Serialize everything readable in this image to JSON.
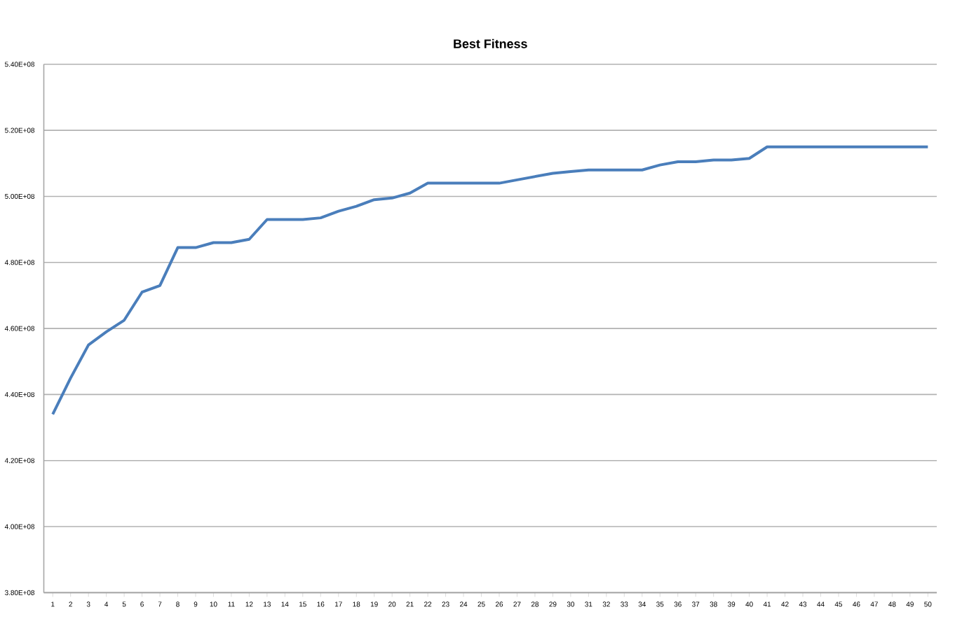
{
  "chart_data": {
    "type": "line",
    "title": "Best Fitness",
    "categories": [
      "1",
      "2",
      "3",
      "4",
      "5",
      "6",
      "7",
      "8",
      "9",
      "10",
      "11",
      "12",
      "13",
      "14",
      "15",
      "16",
      "17",
      "18",
      "19",
      "20",
      "21",
      "22",
      "23",
      "24",
      "25",
      "26",
      "27",
      "28",
      "29",
      "30",
      "31",
      "32",
      "33",
      "34",
      "35",
      "36",
      "37",
      "38",
      "39",
      "40",
      "41",
      "42",
      "43",
      "44",
      "45",
      "46",
      "47",
      "48",
      "49",
      "50"
    ],
    "series": [
      {
        "color": "#4a7ebb",
        "values": [
          434000000,
          445000000,
          455000000,
          459000000,
          462500000,
          471000000,
          473000000,
          484500000,
          484500000,
          486000000,
          486000000,
          487000000,
          493000000,
          493000000,
          493000000,
          493500000,
          495500000,
          497000000,
          499000000,
          499500000,
          501000000,
          504000000,
          504000000,
          504000000,
          504000000,
          504000000,
          505000000,
          506000000,
          507000000,
          507500000,
          508000000,
          508000000,
          508000000,
          508000000,
          509500000,
          510500000,
          510500000,
          511000000,
          511000000,
          511500000,
          515000000,
          515000000,
          515000000,
          515000000,
          515000000,
          515000000,
          515000000,
          515000000,
          515000000,
          515000000
        ]
      }
    ],
    "ylim": [
      380000000,
      540000000
    ],
    "yticks": [
      {
        "value": 380000000,
        "label": "3.80E+08"
      },
      {
        "value": 400000000,
        "label": "4.00E+08"
      },
      {
        "value": 420000000,
        "label": "4.20E+08"
      },
      {
        "value": 440000000,
        "label": "4.40E+08"
      },
      {
        "value": 460000000,
        "label": "4.60E+08"
      },
      {
        "value": 480000000,
        "label": "4.80E+08"
      },
      {
        "value": 500000000,
        "label": "5.00E+08"
      },
      {
        "value": 520000000,
        "label": "5.20E+08"
      },
      {
        "value": 540000000,
        "label": "5.40E+08"
      }
    ],
    "grid": "y",
    "marker": "none",
    "line_style": "solid"
  }
}
